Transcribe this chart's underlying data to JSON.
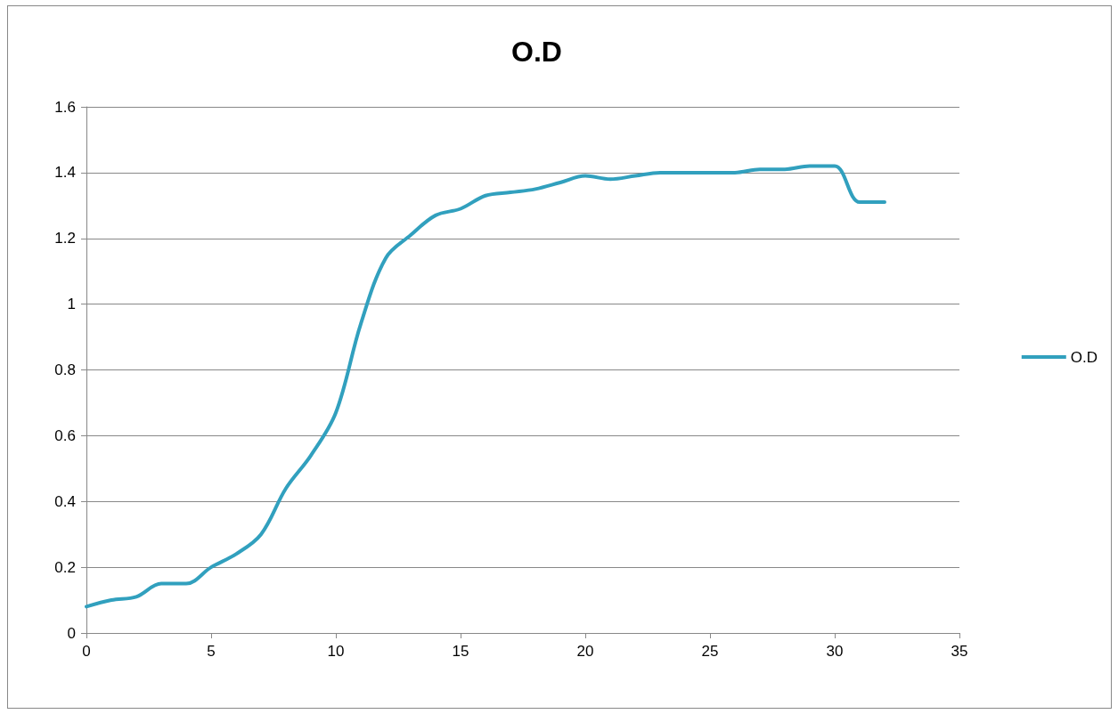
{
  "chart_data": {
    "type": "line",
    "title": "O.D",
    "x": [
      0,
      1,
      2,
      3,
      4,
      5,
      6,
      7,
      8,
      9,
      10,
      11,
      12,
      13,
      14,
      15,
      16,
      17,
      18,
      19,
      20,
      21,
      22,
      23,
      24,
      25,
      26,
      27,
      28,
      29,
      30,
      31,
      32
    ],
    "series": [
      {
        "name": "O.D",
        "color": "#31a0be",
        "values": [
          0.08,
          0.1,
          0.11,
          0.15,
          0.15,
          0.2,
          0.24,
          0.3,
          0.44,
          0.54,
          0.67,
          0.94,
          1.14,
          1.21,
          1.27,
          1.29,
          1.33,
          1.34,
          1.35,
          1.37,
          1.39,
          1.38,
          1.39,
          1.4,
          1.4,
          1.4,
          1.4,
          1.41,
          1.41,
          1.42,
          1.42,
          1.31,
          1.31
        ]
      }
    ],
    "xlim": [
      0,
      35
    ],
    "xticks": [
      0,
      5,
      10,
      15,
      20,
      25,
      30,
      35
    ],
    "ylim": [
      0,
      1.6
    ],
    "yticks": [
      0,
      0.2,
      0.4,
      0.6,
      0.8,
      1,
      1.2,
      1.4,
      1.6
    ],
    "grid": "y",
    "legend": "right",
    "marker": "none",
    "line_style": "solid"
  }
}
